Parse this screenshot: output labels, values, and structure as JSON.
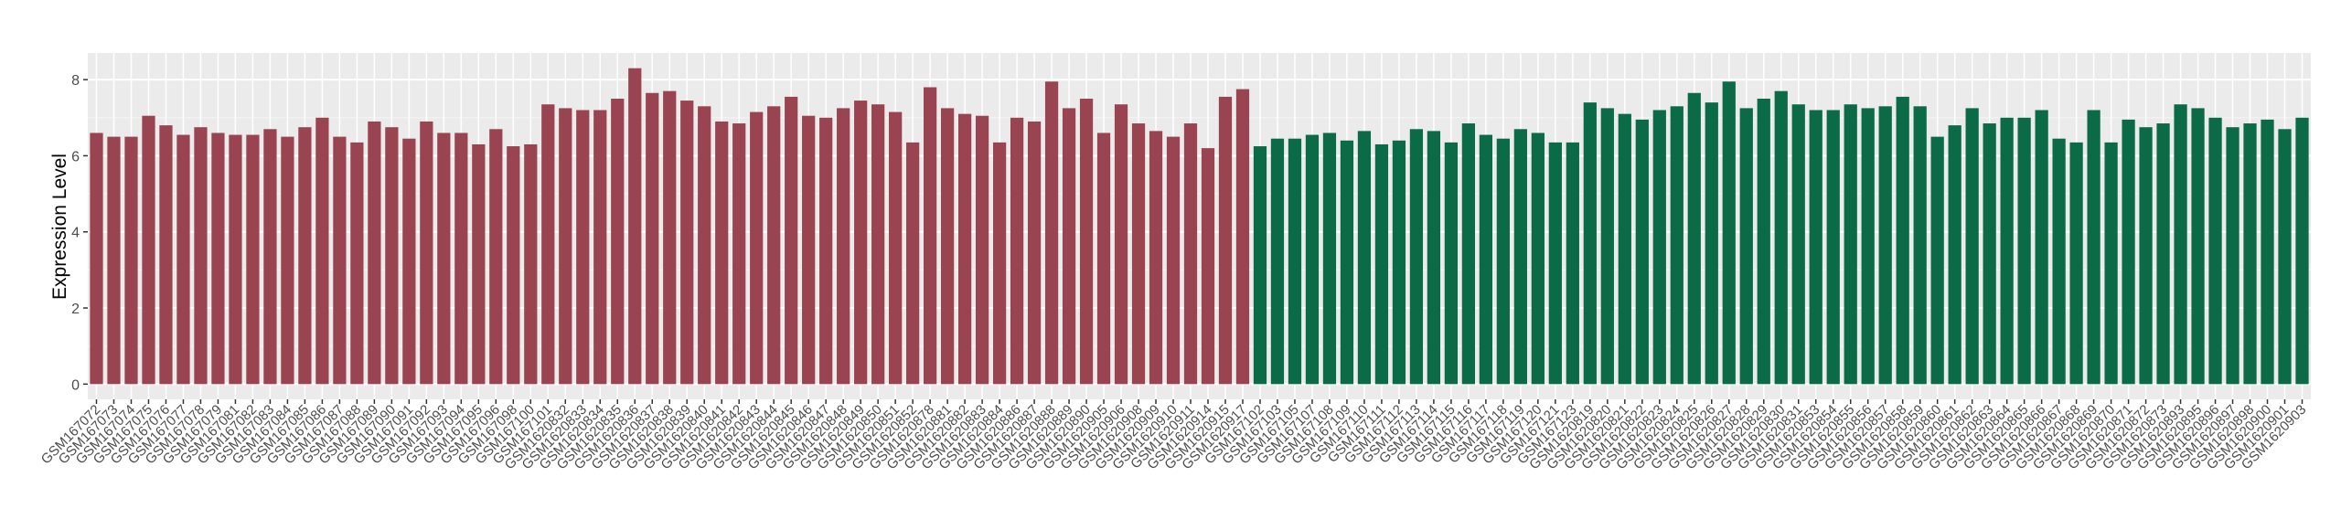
{
  "chart_data": {
    "type": "bar",
    "y_label": "Expression Level",
    "ylim": [
      -0.4,
      8.7
    ],
    "yticks": [
      0,
      2,
      4,
      6,
      8
    ],
    "grid": true,
    "groups": [
      {
        "color": "#9b4451",
        "categories": [
          "GSM167072",
          "GSM167073",
          "GSM167074",
          "GSM167075",
          "GSM167076",
          "GSM167077",
          "GSM167078",
          "GSM167079",
          "GSM167081",
          "GSM167082",
          "GSM167083",
          "GSM167084",
          "GSM167085",
          "GSM167086",
          "GSM167087",
          "GSM167088",
          "GSM167089",
          "GSM167090",
          "GSM167091",
          "GSM167092",
          "GSM167093",
          "GSM167094",
          "GSM167095",
          "GSM167096",
          "GSM167098",
          "GSM167100",
          "GSM167101",
          "GSM1620832",
          "GSM1620833",
          "GSM1620834",
          "GSM1620835",
          "GSM1620836",
          "GSM1620837",
          "GSM1620838",
          "GSM1620839",
          "GSM1620840",
          "GSM1620841",
          "GSM1620842",
          "GSM1620843",
          "GSM1620844",
          "GSM1620845",
          "GSM1620846",
          "GSM1620847",
          "GSM1620848",
          "GSM1620849",
          "GSM1620850",
          "GSM1620851",
          "GSM1620852",
          "GSM1620878",
          "GSM1620881",
          "GSM1620882",
          "GSM1620883",
          "GSM1620884",
          "GSM1620886",
          "GSM1620887",
          "GSM1620888",
          "GSM1620889",
          "GSM1620890",
          "GSM1620905",
          "GSM1620906",
          "GSM1620908",
          "GSM1620909",
          "GSM1620910",
          "GSM1620911",
          "GSM1620914",
          "GSM1620915",
          "GSM1620917"
        ],
        "values": [
          6.6,
          6.5,
          6.5,
          7.05,
          6.8,
          6.55,
          6.75,
          6.6,
          6.55,
          6.55,
          6.7,
          6.5,
          6.75,
          7.0,
          6.5,
          6.35,
          6.9,
          6.75,
          6.45,
          6.9,
          6.6,
          6.6,
          6.3,
          6.7,
          6.25,
          6.3,
          7.35,
          7.25,
          7.2,
          7.2,
          7.5,
          8.3,
          7.65,
          7.7,
          7.45,
          7.3,
          6.9,
          6.85,
          7.15,
          7.3,
          7.55,
          7.05,
          7.0,
          7.25,
          7.45,
          7.35,
          7.15,
          6.35,
          7.8,
          7.25,
          7.1,
          7.05,
          6.35,
          7.0,
          6.9,
          7.95,
          7.25,
          7.5,
          6.6,
          7.35,
          6.85,
          6.65,
          6.5,
          6.85,
          6.2,
          7.55,
          7.75
        ]
      },
      {
        "color": "#0b6b47",
        "categories": [
          "GSM167102",
          "GSM167103",
          "GSM167105",
          "GSM167107",
          "GSM167108",
          "GSM167109",
          "GSM167110",
          "GSM167111",
          "GSM167112",
          "GSM167113",
          "GSM167114",
          "GSM167115",
          "GSM167116",
          "GSM167117",
          "GSM167118",
          "GSM167119",
          "GSM167120",
          "GSM167121",
          "GSM167123",
          "GSM1620819",
          "GSM1620820",
          "GSM1620821",
          "GSM1620822",
          "GSM1620823",
          "GSM1620824",
          "GSM1620825",
          "GSM1620826",
          "GSM1620827",
          "GSM1620828",
          "GSM1620829",
          "GSM1620830",
          "GSM1620831",
          "GSM1620853",
          "GSM1620854",
          "GSM1620855",
          "GSM1620856",
          "GSM1620857",
          "GSM1620858",
          "GSM1620859",
          "GSM1620860",
          "GSM1620861",
          "GSM1620862",
          "GSM1620863",
          "GSM1620864",
          "GSM1620865",
          "GSM1620866",
          "GSM1620867",
          "GSM1620868",
          "GSM1620869",
          "GSM1620870",
          "GSM1620871",
          "GSM1620872",
          "GSM1620873",
          "GSM1620893",
          "GSM1620895",
          "GSM1620896",
          "GSM1620897",
          "GSM1620898",
          "GSM1620900",
          "GSM1620901",
          "GSM1620903"
        ],
        "values": [
          6.25,
          6.45,
          6.45,
          6.55,
          6.6,
          6.4,
          6.65,
          6.3,
          6.4,
          6.7,
          6.65,
          6.35,
          6.85,
          6.55,
          6.45,
          6.7,
          6.6,
          6.35,
          6.35,
          7.4,
          7.25,
          7.1,
          6.95,
          7.2,
          7.3,
          7.65,
          7.4,
          7.95,
          7.25,
          7.5,
          7.7,
          7.35,
          7.2,
          7.2,
          7.35,
          7.25,
          7.3,
          7.55,
          7.3,
          6.5,
          6.8,
          7.25,
          6.85,
          7.0,
          7.0,
          7.2,
          6.45,
          6.35,
          7.2,
          6.35,
          6.95,
          6.75,
          6.85,
          7.35,
          7.25,
          7.0,
          6.75,
          6.85,
          6.95,
          6.7,
          7.0
        ]
      }
    ]
  }
}
